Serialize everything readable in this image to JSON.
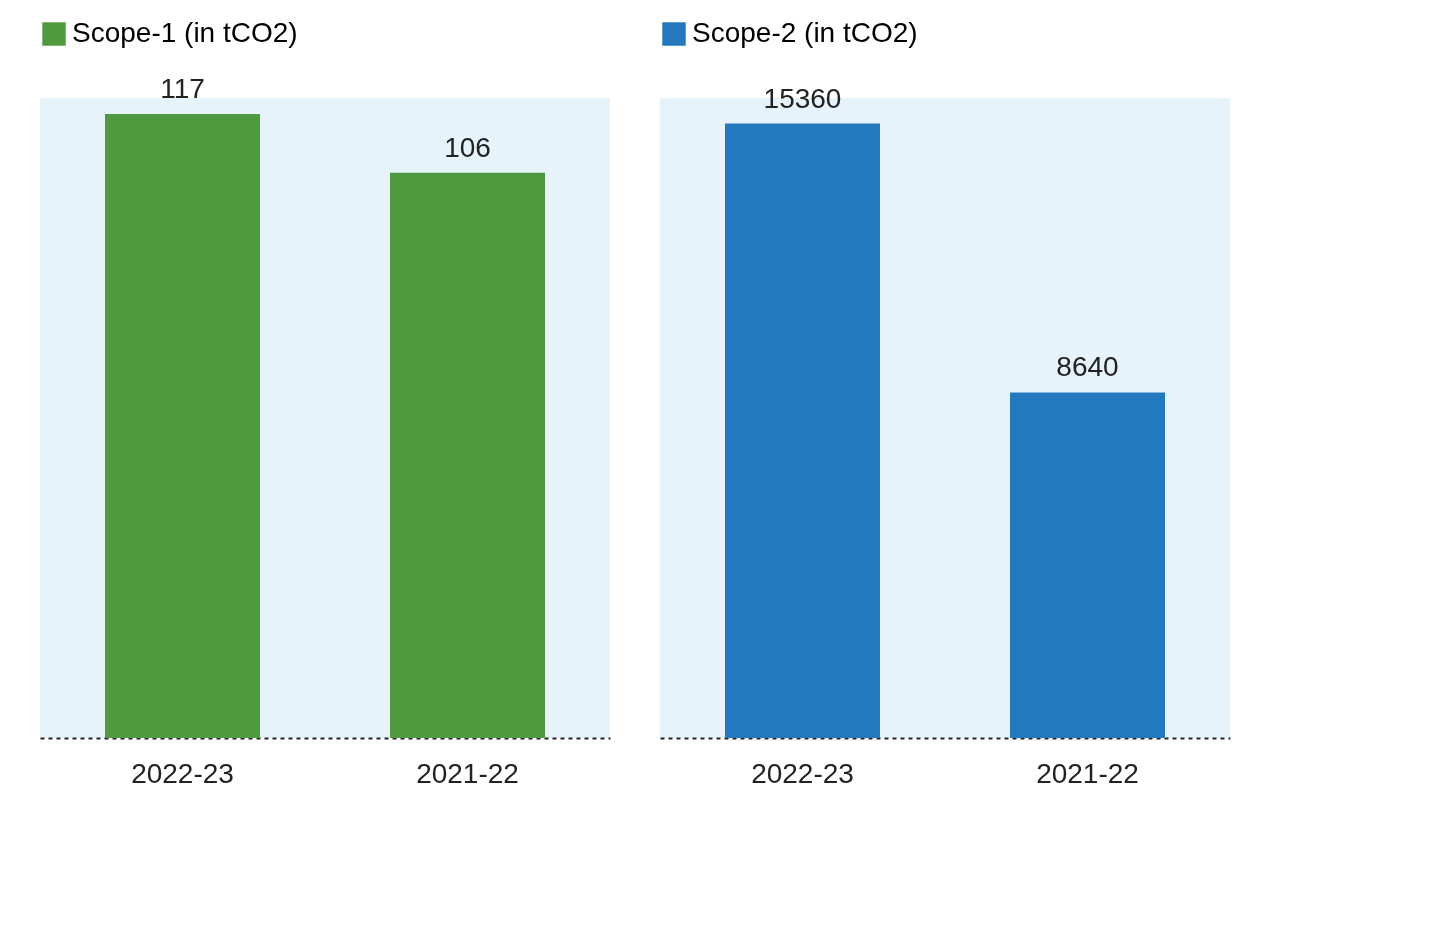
{
  "chart_data": [
    {
      "type": "bar",
      "categories": [
        "2022-23",
        "2021-22"
      ],
      "series": [
        {
          "name": "Scope-1 (in tCO2)",
          "color": "#4f9a3e",
          "values": [
            117,
            106
          ]
        }
      ],
      "data_labels": true,
      "legend": "top"
    },
    {
      "type": "bar",
      "categories": [
        "2022-23",
        "2021-22"
      ],
      "series": [
        {
          "name": "Scope-2 (in tCO2)",
          "color": "#2478bd",
          "values": [
            15360,
            8640
          ]
        }
      ],
      "data_labels": true,
      "legend": "top"
    }
  ]
}
